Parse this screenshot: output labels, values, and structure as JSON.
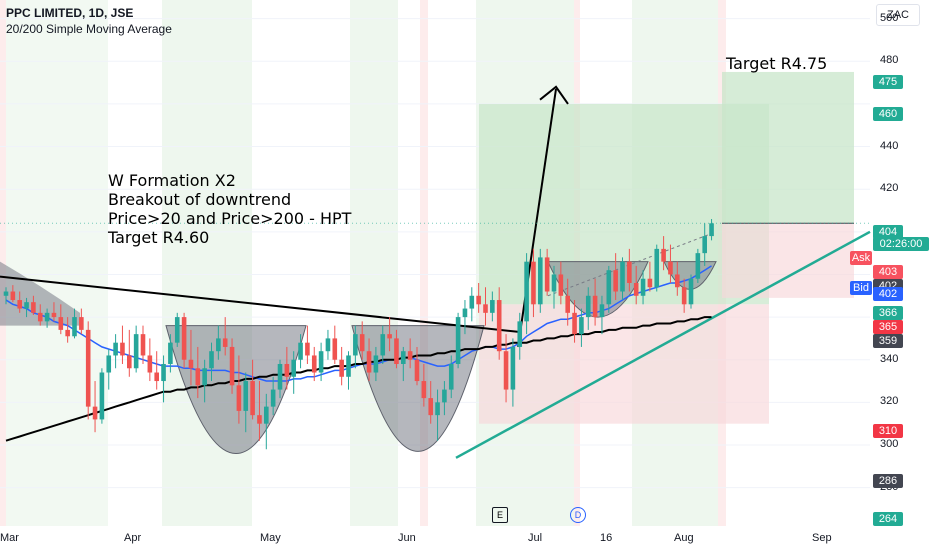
{
  "header": {
    "symbol": "PPC LIMITED, 1D, JSE",
    "indicator": "20/200 Simple Moving Average"
  },
  "currency_button": "ZAC",
  "annotations": {
    "lines": [
      "W Formation X2",
      "Breakout of downtrend",
      "Price>20 and Price>200 - HPT",
      "Target R4.60"
    ],
    "target_label": "Target R4.75"
  },
  "price_axis": {
    "ticks": [
      "500",
      "480",
      "440",
      "420",
      "340",
      "320",
      "300",
      "280"
    ],
    "tags": [
      {
        "text": "475",
        "color": "#22ab94"
      },
      {
        "text": "460",
        "color": "#22ab94"
      },
      {
        "text": "404",
        "color": "#22ab94"
      },
      {
        "text": "02:26:00",
        "color": "#22ab94"
      },
      {
        "text": "Ask",
        "color": "#f7525f"
      },
      {
        "text": "403",
        "color": "#f7525f"
      },
      {
        "text": "402",
        "color": "#434651"
      },
      {
        "text": "Bid",
        "color": "#2962ff"
      },
      {
        "text": "402",
        "color": "#2962ff"
      },
      {
        "text": "366",
        "color": "#22ab94"
      },
      {
        "text": "365",
        "color": "#f23645"
      },
      {
        "text": "359",
        "color": "#434651"
      },
      {
        "text": "310",
        "color": "#f23645"
      },
      {
        "text": "286",
        "color": "#434651"
      },
      {
        "text": "264",
        "color": "#22ab94"
      }
    ]
  },
  "time_axis": [
    "Mar",
    "Apr",
    "May",
    "Jun",
    "Jul",
    "16",
    "Aug",
    "Sep"
  ],
  "events": [
    "E",
    "D"
  ],
  "colors": {
    "up": "#26a69a",
    "down": "#ef5350",
    "sma20": "#2962ff",
    "sma200": "#000000",
    "trend_green": "#22ab94",
    "cup_fill": "#787b86"
  },
  "chart_data": {
    "type": "candlestick",
    "title": "PPC LIMITED, 1D, JSE",
    "ylim": [
      262,
      505
    ],
    "x_labels": [
      "Mar",
      "Apr",
      "May",
      "Jun",
      "Jul",
      "16",
      "Aug",
      "Sep"
    ],
    "candles": [
      [
        370,
        374,
        366,
        372
      ],
      [
        372,
        375,
        367,
        368
      ],
      [
        368,
        372,
        362,
        364
      ],
      [
        364,
        369,
        360,
        367
      ],
      [
        367,
        370,
        361,
        362
      ],
      [
        362,
        366,
        356,
        358
      ],
      [
        358,
        364,
        355,
        362
      ],
      [
        362,
        367,
        358,
        360
      ],
      [
        360,
        366,
        352,
        354
      ],
      [
        354,
        360,
        348,
        351
      ],
      [
        351,
        364,
        350,
        360
      ],
      [
        360,
        364,
        352,
        354
      ],
      [
        354,
        358,
        312,
        318
      ],
      [
        318,
        330,
        306,
        312
      ],
      [
        312,
        336,
        310,
        334
      ],
      [
        334,
        345,
        326,
        342
      ],
      [
        342,
        352,
        336,
        348
      ],
      [
        348,
        356,
        338,
        342
      ],
      [
        342,
        354,
        332,
        336
      ],
      [
        336,
        356,
        334,
        352
      ],
      [
        352,
        356,
        338,
        342
      ],
      [
        342,
        350,
        330,
        334
      ],
      [
        334,
        344,
        326,
        330
      ],
      [
        330,
        342,
        320,
        338
      ],
      [
        338,
        352,
        334,
        348
      ],
      [
        348,
        362,
        346,
        360
      ],
      [
        360,
        362,
        336,
        340
      ],
      [
        340,
        354,
        328,
        336
      ],
      [
        336,
        346,
        322,
        328
      ],
      [
        328,
        340,
        320,
        336
      ],
      [
        336,
        348,
        330,
        344
      ],
      [
        344,
        356,
        340,
        350
      ],
      [
        350,
        360,
        342,
        346
      ],
      [
        346,
        350,
        324,
        328
      ],
      [
        328,
        342,
        310,
        316
      ],
      [
        316,
        334,
        306,
        330
      ],
      [
        330,
        340,
        312,
        314
      ],
      [
        314,
        330,
        302,
        310
      ],
      [
        310,
        324,
        298,
        318
      ],
      [
        318,
        332,
        314,
        326
      ],
      [
        326,
        340,
        322,
        338
      ],
      [
        338,
        346,
        326,
        332
      ],
      [
        332,
        344,
        324,
        340
      ],
      [
        340,
        352,
        336,
        348
      ],
      [
        348,
        356,
        338,
        342
      ],
      [
        342,
        346,
        330,
        334
      ],
      [
        334,
        348,
        330,
        344
      ],
      [
        344,
        354,
        340,
        350
      ],
      [
        350,
        356,
        338,
        340
      ],
      [
        340,
        346,
        328,
        332
      ],
      [
        332,
        344,
        326,
        342
      ],
      [
        342,
        356,
        336,
        352
      ],
      [
        352,
        358,
        340,
        344
      ],
      [
        344,
        350,
        330,
        334
      ],
      [
        334,
        346,
        330,
        342
      ],
      [
        342,
        356,
        338,
        352
      ],
      [
        352,
        360,
        344,
        350
      ],
      [
        350,
        354,
        336,
        338
      ],
      [
        338,
        346,
        330,
        344
      ],
      [
        344,
        350,
        336,
        340
      ],
      [
        340,
        346,
        328,
        330
      ],
      [
        330,
        338,
        318,
        322
      ],
      [
        322,
        330,
        310,
        314
      ],
      [
        314,
        326,
        302,
        320
      ],
      [
        320,
        330,
        314,
        326
      ],
      [
        326,
        342,
        322,
        338
      ],
      [
        338,
        362,
        336,
        360
      ],
      [
        360,
        368,
        352,
        364
      ],
      [
        364,
        374,
        358,
        370
      ],
      [
        370,
        376,
        362,
        366
      ],
      [
        366,
        374,
        356,
        362
      ],
      [
        362,
        372,
        358,
        368
      ],
      [
        368,
        374,
        340,
        344
      ],
      [
        344,
        352,
        320,
        326
      ],
      [
        326,
        350,
        318,
        346
      ],
      [
        346,
        362,
        340,
        358
      ],
      [
        358,
        390,
        352,
        386
      ],
      [
        386,
        392,
        360,
        366
      ],
      [
        366,
        392,
        362,
        388
      ],
      [
        388,
        392,
        370,
        372
      ],
      [
        372,
        384,
        364,
        380
      ],
      [
        380,
        386,
        366,
        370
      ],
      [
        370,
        378,
        356,
        362
      ],
      [
        362,
        368,
        348,
        352
      ],
      [
        352,
        364,
        346,
        360
      ],
      [
        360,
        374,
        354,
        370
      ],
      [
        370,
        378,
        356,
        360
      ],
      [
        360,
        370,
        352,
        366
      ],
      [
        366,
        384,
        362,
        382
      ],
      [
        382,
        390,
        368,
        372
      ],
      [
        372,
        388,
        368,
        386
      ],
      [
        386,
        392,
        372,
        376
      ],
      [
        376,
        384,
        366,
        370
      ],
      [
        370,
        382,
        366,
        378
      ],
      [
        378,
        386,
        372,
        374
      ],
      [
        374,
        394,
        372,
        392
      ],
      [
        392,
        398,
        382,
        386
      ],
      [
        386,
        394,
        376,
        380
      ],
      [
        380,
        386,
        370,
        374
      ],
      [
        374,
        378,
        362,
        366
      ],
      [
        366,
        380,
        364,
        378
      ],
      [
        378,
        392,
        376,
        390
      ],
      [
        390,
        404,
        384,
        398
      ],
      [
        398,
        406,
        396,
        404
      ]
    ],
    "series": [
      {
        "name": "SMA 20",
        "values": [
          368,
          366,
          365,
          364,
          362,
          361,
          360,
          358,
          357,
          356,
          354,
          352,
          350,
          348,
          346,
          345,
          344,
          343,
          342,
          341,
          340,
          339,
          338,
          337,
          337,
          337,
          336,
          336,
          335,
          335,
          335,
          335,
          335,
          334,
          334,
          333,
          332,
          331,
          330,
          330,
          330,
          330,
          331,
          331,
          332,
          332,
          333,
          334,
          335,
          335,
          336,
          337,
          338,
          338,
          338,
          339,
          340,
          340,
          341,
          341,
          340,
          339,
          338,
          337,
          337,
          338,
          340,
          342,
          344,
          345,
          346,
          346,
          345,
          345,
          346,
          348,
          351,
          353,
          355,
          357,
          358,
          359,
          359,
          360,
          361,
          362,
          362,
          363,
          364,
          366,
          368,
          370,
          371,
          372,
          373,
          374,
          375,
          376,
          376,
          377,
          378,
          380,
          382,
          384
        ]
      },
      {
        "name": "SMA 200",
        "values": [
          302,
          303,
          304,
          305,
          306,
          307,
          308,
          309,
          310,
          311,
          312,
          313,
          314,
          315,
          316,
          317,
          318,
          319,
          320,
          321,
          322,
          323,
          324,
          325,
          325,
          326,
          326,
          327,
          327,
          328,
          328,
          329,
          329,
          330,
          330,
          331,
          331,
          332,
          332,
          333,
          333,
          333,
          334,
          334,
          335,
          335,
          336,
          336,
          337,
          337,
          337,
          338,
          338,
          339,
          339,
          340,
          340,
          340,
          341,
          341,
          342,
          342,
          342,
          343,
          343,
          344,
          344,
          345,
          345,
          345,
          346,
          346,
          347,
          347,
          348,
          348,
          348,
          349,
          349,
          350,
          350,
          351,
          351,
          352,
          352,
          352,
          353,
          353,
          354,
          354,
          355,
          355,
          355,
          356,
          356,
          357,
          357,
          357,
          358,
          358,
          359,
          359,
          360,
          360
        ]
      }
    ],
    "levels": {
      "target_1": 460,
      "target_2": 475,
      "stop": 310,
      "entry": 366,
      "current": 404
    }
  }
}
